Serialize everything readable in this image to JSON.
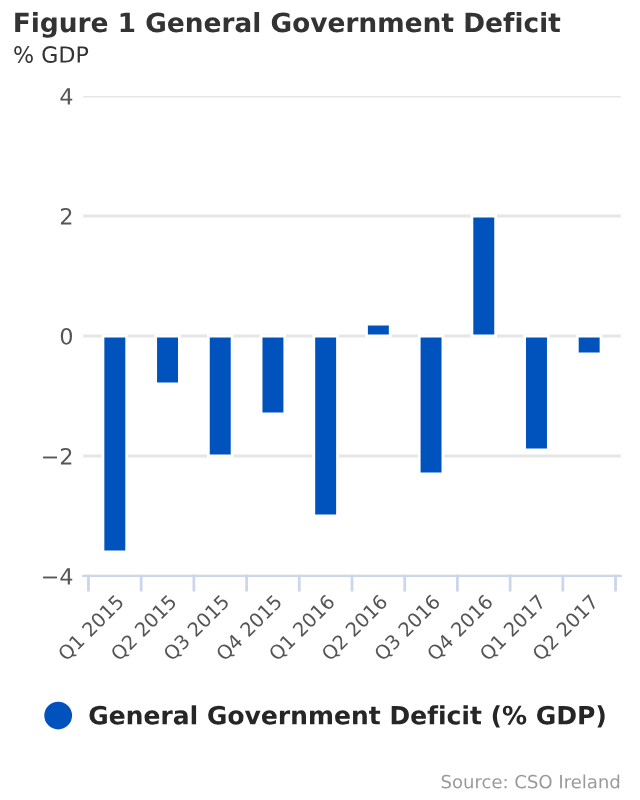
{
  "chart_data": {
    "type": "bar",
    "title": "Figure 1 General Government Deficit",
    "ylabel": "% GDP",
    "categories": [
      "Q1 2015",
      "Q2 2015",
      "Q3 2015",
      "Q4 2015",
      "Q1 2016",
      "Q2 2016",
      "Q3 2016",
      "Q4 2016",
      "Q1 2017",
      "Q2 2017"
    ],
    "series": [
      {
        "name": "General Government Deficit (% GDP)",
        "color": "#0052bc",
        "values": [
          -3.6,
          -0.8,
          -2.0,
          -1.3,
          -3.0,
          0.2,
          -2.3,
          2.0,
          -1.9,
          -0.3
        ]
      }
    ],
    "ylim": [
      -4,
      4
    ],
    "yticks": [
      {
        "value": -4,
        "label": "−4"
      },
      {
        "value": -2,
        "label": "−2"
      },
      0,
      2,
      4
    ],
    "grid": "y",
    "legend": "bottom",
    "annotations": [
      "Source: CSO Ireland"
    ]
  }
}
